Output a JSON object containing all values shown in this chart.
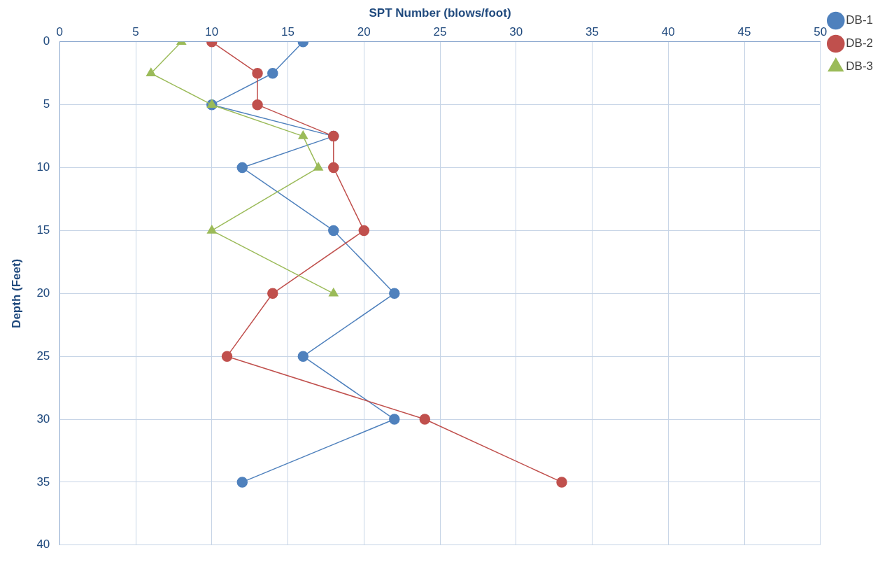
{
  "chart_data": {
    "type": "line",
    "xlabel": "SPT Number (blows/foot)",
    "ylabel": "Depth (Feet)",
    "xlim": [
      0,
      50
    ],
    "xticks": [
      0,
      5,
      10,
      15,
      20,
      25,
      30,
      35,
      40,
      45,
      50
    ],
    "ylim": [
      40,
      0
    ],
    "yticks": [
      0,
      5,
      10,
      15,
      20,
      25,
      30,
      35,
      40
    ],
    "grid": true,
    "legend": "right",
    "line_style": "solid",
    "series": [
      {
        "name": "DB-1",
        "color": "#4f81bd",
        "marker": "circle",
        "x": [
          16,
          14,
          10,
          18,
          12,
          18,
          22,
          16,
          22,
          12
        ],
        "values": [
          0,
          2.5,
          5,
          7.5,
          10,
          15,
          20,
          25,
          30,
          35
        ]
      },
      {
        "name": "DB-2",
        "color": "#c0504d",
        "marker": "circle",
        "x": [
          10,
          13,
          13,
          18,
          18,
          20,
          14,
          11,
          24,
          33
        ],
        "values": [
          0,
          2.5,
          5,
          7.5,
          10,
          15,
          20,
          25,
          30,
          35
        ]
      },
      {
        "name": "DB-3",
        "color": "#9bbb59",
        "marker": "triangle",
        "x": [
          8,
          6,
          10,
          16,
          17,
          10,
          18
        ],
        "values": [
          0,
          2.5,
          5,
          7.5,
          10,
          15,
          20
        ]
      }
    ]
  }
}
